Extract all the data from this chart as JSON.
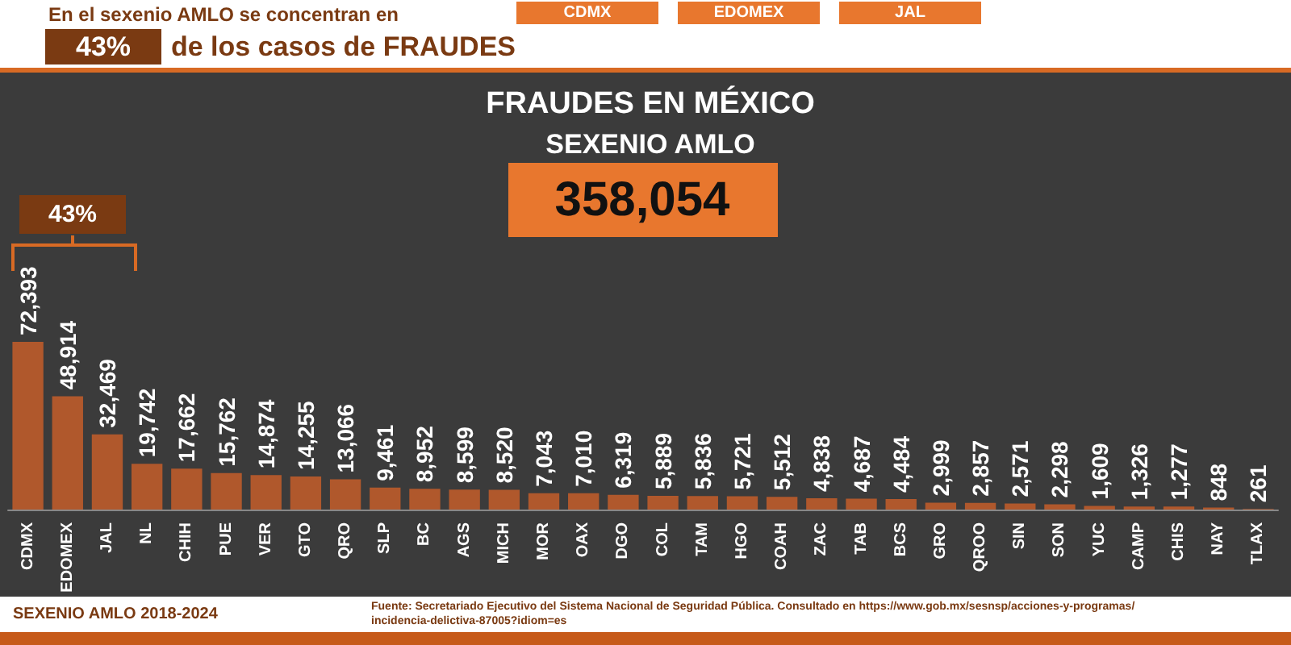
{
  "chart_data": {
    "type": "bar",
    "title": "FRAUDES EN MÉXICO",
    "subtitle": "SEXENIO AMLO",
    "categories": [
      "CDMX",
      "EDOMEX",
      "JAL",
      "NL",
      "CHIH",
      "PUE",
      "VER",
      "GTO",
      "QRO",
      "SLP",
      "BC",
      "AGS",
      "MICH",
      "MOR",
      "OAX",
      "DGO",
      "COL",
      "TAM",
      "HGO",
      "COAH",
      "ZAC",
      "TAB",
      "BCS",
      "GRO",
      "QROO",
      "SIN",
      "SON",
      "YUC",
      "CAMP",
      "CHIS",
      "NAY",
      "TLAX"
    ],
    "values": [
      72393,
      48914,
      32469,
      19742,
      17662,
      15762,
      14874,
      14255,
      13066,
      9461,
      8952,
      8599,
      8520,
      7043,
      7010,
      6319,
      5889,
      5836,
      5721,
      5512,
      4838,
      4687,
      4484,
      2999,
      2857,
      2571,
      2298,
      1609,
      1326,
      1277,
      848,
      261
    ],
    "color": "#b0582c",
    "value_labels": [
      "72,393",
      "48,914",
      "32,469",
      "19,742",
      "17,662",
      "15,762",
      "14,874",
      "14,255",
      "13,066",
      "9,461",
      "8,952",
      "8,599",
      "8,520",
      "7,043",
      "7,010",
      "6,319",
      "5,889",
      "5,836",
      "5,721",
      "5,512",
      "4,838",
      "4,687",
      "4,484",
      "2,999",
      "2,857",
      "2,571",
      "2,298",
      "1,609",
      "1,326",
      "1,277",
      "848",
      "261"
    ],
    "annotations": [
      "En el sexenio AMLO se concentran en",
      "43%",
      "de los casos de FRAUDES",
      "CDMX",
      "EDOMEX",
      "JAL",
      "358,054",
      "43%",
      "SEXENIO AMLO 2018-2024",
      "Fuente: Secretariado Ejecutivo del Sistema Nacional de Seguridad Pública. Consultado en https://www.gob.mx/sesnsp/acciones-y-programas/incidencia-delictiva-87005?idiom=es"
    ]
  }
}
